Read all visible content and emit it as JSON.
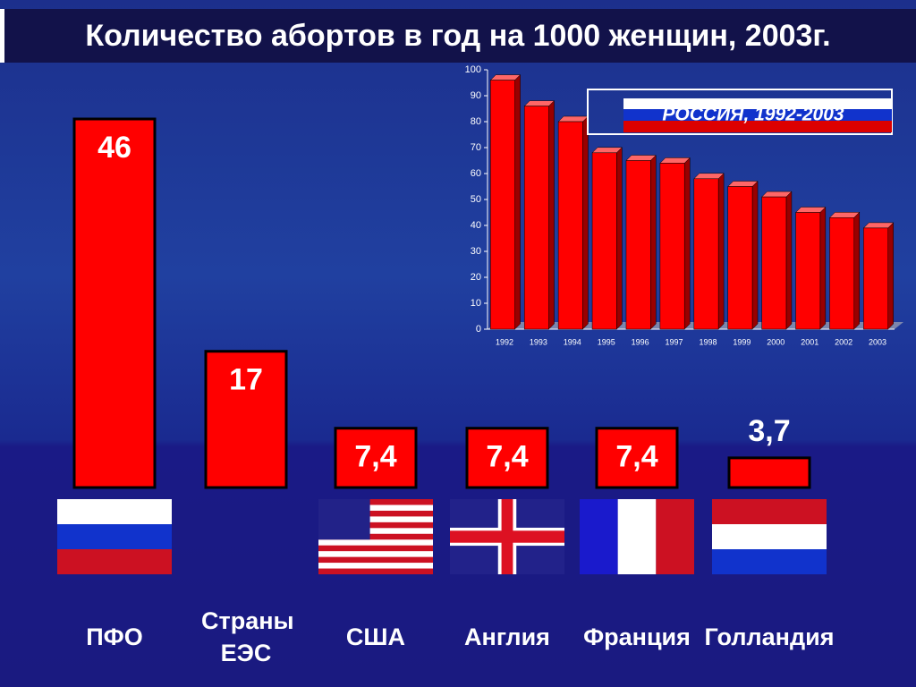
{
  "chart_data": [
    {
      "type": "bar",
      "title": "Количество абортов в год на 1000 женщин, 2003г.",
      "categories": [
        "ПФО",
        "Страны ЕЭС",
        "США",
        "Англия",
        "Франция",
        "Голландия"
      ],
      "values": [
        46,
        17,
        7.4,
        7.4,
        7.4,
        3.7
      ],
      "value_labels": [
        "46",
        "17",
        "7,4",
        "7,4",
        "7,4",
        "3,7"
      ],
      "color": "#ff0000"
    },
    {
      "type": "bar",
      "categories": [
        "1992",
        "1993",
        "1994",
        "1995",
        "1996",
        "1997",
        "1998",
        "1999",
        "2000",
        "2001",
        "2002",
        "2003"
      ],
      "series": [
        {
          "name": "РОССИЯ, 1992-2003",
          "color": "#ff0000",
          "values": [
            96,
            86,
            80,
            68,
            65,
            64,
            58,
            55,
            51,
            45,
            43,
            39
          ]
        }
      ],
      "ylim": [
        0,
        100
      ],
      "yticks": [
        0,
        10,
        20,
        30,
        40,
        50,
        60,
        70,
        80,
        90,
        100
      ]
    }
  ]
}
